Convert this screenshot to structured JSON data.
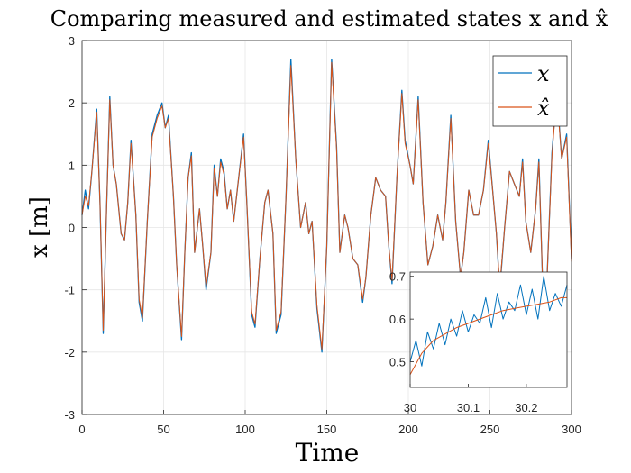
{
  "chart_data": {
    "type": "line",
    "title": "Comparing measured and estimated states x and x̂",
    "xlabel": "Time",
    "ylabel": "x [m]",
    "xlim": [
      0,
      300
    ],
    "ylim": [
      -3,
      3
    ],
    "xticks": [
      "0",
      "50",
      "100",
      "150",
      "200",
      "250",
      "300"
    ],
    "yticks": [
      "-3",
      "-2",
      "-1",
      "0",
      "1",
      "2",
      "3"
    ],
    "grid": true,
    "legend": {
      "placement": "top-right",
      "entries": [
        "x",
        "x̂"
      ]
    },
    "colors": {
      "x": "#0072BD",
      "xhat": "#D95319"
    },
    "series": [
      {
        "name": "x",
        "x": [
          0,
          2,
          4,
          6,
          9,
          11,
          13,
          15,
          17,
          19,
          21,
          24,
          26,
          28,
          30,
          33,
          35,
          37,
          40,
          43,
          46,
          49,
          51,
          53,
          56,
          58,
          61,
          63,
          65,
          67,
          69,
          72,
          74,
          76,
          79,
          81,
          83,
          85,
          87,
          89,
          91,
          93,
          96,
          99,
          101,
          104,
          106,
          109,
          112,
          114,
          117,
          119,
          122,
          125,
          128,
          131,
          134,
          137,
          139,
          141,
          144,
          147,
          150,
          153,
          156,
          158,
          161,
          163,
          166,
          169,
          172,
          174,
          177,
          180,
          183,
          186,
          188,
          190,
          193,
          196,
          198,
          201,
          203,
          206,
          209,
          212,
          215,
          218,
          221,
          223,
          226,
          229,
          232,
          234,
          237,
          240,
          243,
          246,
          249,
          252,
          254,
          256,
          259,
          262,
          265,
          268,
          270,
          272,
          275,
          278,
          280,
          283,
          285,
          288,
          291,
          294,
          297,
          300
        ],
        "values": [
          0.2,
          0.6,
          0.3,
          0.9,
          1.9,
          0.4,
          -1.7,
          0.3,
          2.1,
          1.0,
          0.7,
          -0.1,
          -0.2,
          0.4,
          1.4,
          0.2,
          -1.2,
          -1.5,
          0.1,
          1.5,
          1.8,
          2.0,
          1.6,
          1.8,
          0.5,
          -0.6,
          -1.8,
          -0.4,
          0.8,
          1.2,
          -0.4,
          0.3,
          -0.3,
          -1.0,
          -0.4,
          1.0,
          0.5,
          1.1,
          0.9,
          0.3,
          0.6,
          0.1,
          0.8,
          1.5,
          0.4,
          -1.4,
          -1.6,
          -0.5,
          0.4,
          0.6,
          -0.1,
          -1.7,
          -1.4,
          0.5,
          2.7,
          1.1,
          0.0,
          0.4,
          -0.1,
          0.1,
          -1.3,
          -2.0,
          -0.3,
          2.7,
          1.3,
          -0.4,
          0.2,
          0.0,
          -0.5,
          -0.6,
          -1.2,
          -0.8,
          0.2,
          0.8,
          0.6,
          0.5,
          -0.3,
          -0.9,
          0.8,
          2.2,
          1.4,
          1.0,
          0.7,
          2.1,
          0.4,
          -0.6,
          -0.3,
          0.2,
          -0.2,
          0.4,
          1.8,
          0.1,
          -0.8,
          -0.4,
          0.6,
          0.2,
          0.2,
          0.6,
          1.4,
          0.5,
          -0.1,
          -1.0,
          0.0,
          0.9,
          0.7,
          0.5,
          1.1,
          0.1,
          -0.4,
          0.3,
          1.1,
          -1.5,
          -0.8,
          1.2,
          2.2,
          1.1,
          1.5,
          -0.5
        ]
      },
      {
        "name": "x̂",
        "x": [
          0,
          2,
          4,
          6,
          9,
          11,
          13,
          15,
          17,
          19,
          21,
          24,
          26,
          28,
          30,
          33,
          35,
          37,
          40,
          43,
          46,
          49,
          51,
          53,
          56,
          58,
          61,
          63,
          65,
          67,
          69,
          72,
          74,
          76,
          79,
          81,
          83,
          85,
          87,
          89,
          91,
          93,
          96,
          99,
          101,
          104,
          106,
          109,
          112,
          114,
          117,
          119,
          122,
          125,
          128,
          131,
          134,
          137,
          139,
          141,
          144,
          147,
          150,
          153,
          156,
          158,
          161,
          163,
          166,
          169,
          172,
          174,
          177,
          180,
          183,
          186,
          188,
          190,
          193,
          196,
          198,
          201,
          203,
          206,
          209,
          212,
          215,
          218,
          221,
          223,
          226,
          229,
          232,
          234,
          237,
          240,
          243,
          246,
          249,
          252,
          254,
          256,
          259,
          262,
          265,
          268,
          270,
          272,
          275,
          278,
          280,
          283,
          285,
          288,
          291,
          294,
          297,
          300
        ],
        "values": [
          0.2,
          0.5,
          0.35,
          0.9,
          1.85,
          0.4,
          -1.65,
          0.3,
          2.05,
          1.0,
          0.7,
          -0.1,
          -0.2,
          0.4,
          1.35,
          0.2,
          -1.15,
          -1.45,
          0.1,
          1.45,
          1.75,
          1.95,
          1.6,
          1.75,
          0.5,
          -0.6,
          -1.75,
          -0.4,
          0.8,
          1.15,
          -0.4,
          0.3,
          -0.3,
          -0.95,
          -0.4,
          0.95,
          0.5,
          1.05,
          0.85,
          0.3,
          0.6,
          0.1,
          0.8,
          1.45,
          0.4,
          -1.35,
          -1.55,
          -0.5,
          0.4,
          0.6,
          -0.1,
          -1.65,
          -1.35,
          0.5,
          2.6,
          1.1,
          0.0,
          0.4,
          -0.1,
          0.1,
          -1.25,
          -1.95,
          -0.3,
          2.65,
          1.25,
          -0.4,
          0.2,
          0.0,
          -0.5,
          -0.6,
          -1.15,
          -0.8,
          0.2,
          0.8,
          0.6,
          0.5,
          -0.3,
          -0.85,
          0.8,
          2.15,
          1.35,
          1.0,
          0.7,
          2.05,
          0.4,
          -0.6,
          -0.3,
          0.2,
          -0.2,
          0.4,
          1.75,
          0.1,
          -0.8,
          -0.4,
          0.6,
          0.2,
          0.2,
          0.6,
          1.35,
          0.5,
          -0.1,
          -0.95,
          0.0,
          0.9,
          0.7,
          0.5,
          1.05,
          0.1,
          -0.4,
          0.3,
          1.05,
          -1.45,
          -0.8,
          1.15,
          2.15,
          1.1,
          1.45,
          -0.55
        ]
      }
    ],
    "inset": {
      "type": "line",
      "xlim": [
        30,
        30.27
      ],
      "ylim": [
        0.44,
        0.71
      ],
      "xticks": [
        "30",
        "30.1",
        "30.2"
      ],
      "yticks": [
        "0.5",
        "0.6",
        "0.7"
      ],
      "series": [
        {
          "name": "x",
          "x": [
            30.0,
            30.01,
            30.02,
            30.03,
            30.04,
            30.05,
            30.06,
            30.07,
            30.08,
            30.09,
            30.1,
            30.11,
            30.12,
            30.13,
            30.14,
            30.15,
            30.16,
            30.17,
            30.18,
            30.19,
            30.2,
            30.21,
            30.22,
            30.23,
            30.24,
            30.25,
            30.26,
            30.27
          ],
          "values": [
            0.5,
            0.55,
            0.49,
            0.57,
            0.53,
            0.59,
            0.54,
            0.6,
            0.56,
            0.62,
            0.57,
            0.61,
            0.59,
            0.65,
            0.58,
            0.66,
            0.6,
            0.64,
            0.62,
            0.68,
            0.61,
            0.67,
            0.6,
            0.7,
            0.62,
            0.66,
            0.63,
            0.68
          ]
        },
        {
          "name": "x̂",
          "x": [
            30.0,
            30.02,
            30.04,
            30.06,
            30.08,
            30.1,
            30.12,
            30.14,
            30.16,
            30.18,
            30.2,
            30.22,
            30.24,
            30.26,
            30.27
          ],
          "values": [
            0.47,
            0.52,
            0.55,
            0.565,
            0.58,
            0.59,
            0.6,
            0.61,
            0.62,
            0.625,
            0.63,
            0.635,
            0.64,
            0.65,
            0.65
          ]
        }
      ]
    }
  }
}
